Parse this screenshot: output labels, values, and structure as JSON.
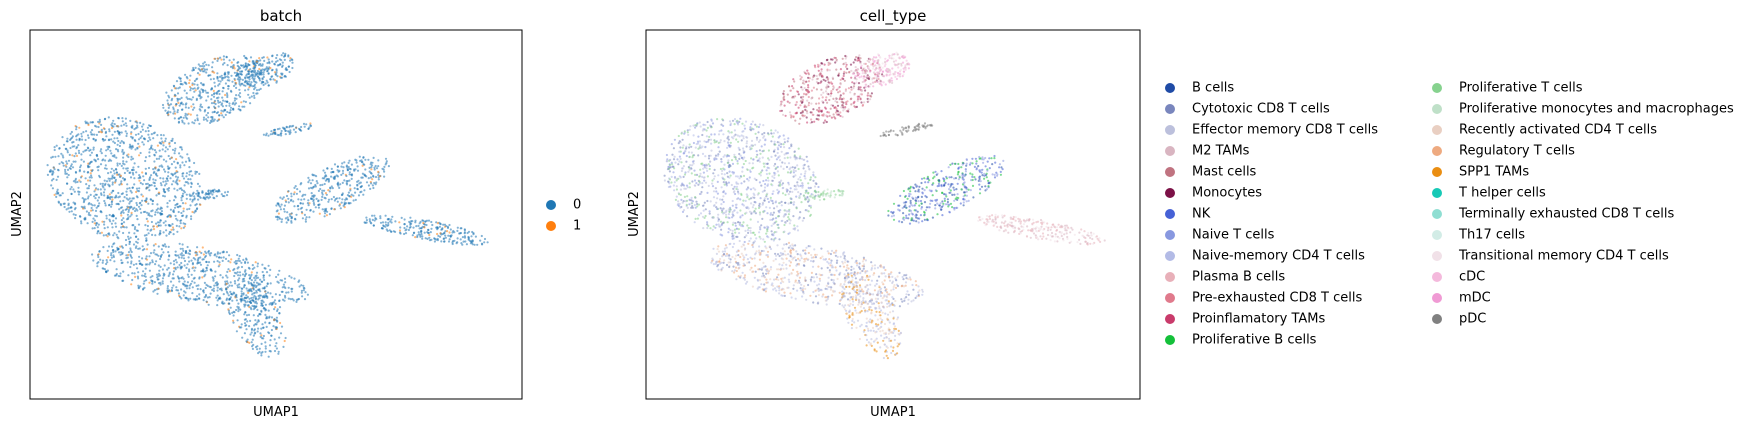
{
  "chart_data": [
    {
      "type": "scatter",
      "title": "batch",
      "xlabel": "UMAP1",
      "ylabel": "UMAP2",
      "legend_placement": "right",
      "categories": [
        "0",
        "1"
      ],
      "colors": [
        "#1f77b4",
        "#ff7f0e"
      ]
    },
    {
      "type": "scatter",
      "title": "cell_type",
      "xlabel": "UMAP1",
      "ylabel": "UMAP2",
      "legend_placement": "right",
      "categories": [
        "B cells",
        "Cytotoxic CD8 T cells",
        "Effector memory CD8 T cells",
        "M2 TAMs",
        "Mast cells",
        "Monocytes",
        "NK",
        "Naive T cells",
        "Naive-memory CD4 T cells",
        "Plasma B cells",
        "Pre-exhausted CD8 T cells",
        "Proinflamatory TAMs",
        "Proliferative B cells",
        "Proliferative T cells",
        "Proliferative monocytes and macrophages",
        "Recently activated CD4 T cells",
        "Regulatory T cells",
        "SPP1 TAMs",
        "T helper cells",
        "Terminally exhausted CD8 T cells",
        "Th17 cells",
        "Transitional memory CD4 T cells",
        "cDC",
        "mDC",
        "pDC"
      ],
      "colors": [
        "#1f4ba6",
        "#7986bd",
        "#bcc0dc",
        "#d9b5c1",
        "#c07380",
        "#7c1147",
        "#4661d6",
        "#8898e0",
        "#b3bbe6",
        "#e8b0b9",
        "#e07a8c",
        "#c93b6b",
        "#14c03a",
        "#86d28e",
        "#bfe0c8",
        "#e9cfc2",
        "#eeaa80",
        "#ea8e12",
        "#17c9b6",
        "#8fded2",
        "#d2ece6",
        "#f1e1e8",
        "#f4b9dc",
        "#f09ad4",
        "#808080"
      ]
    }
  ]
}
